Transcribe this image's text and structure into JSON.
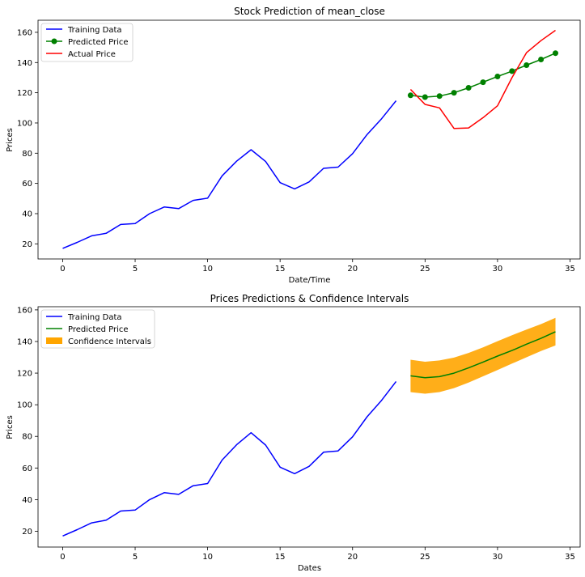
{
  "chart_data": [
    {
      "type": "line",
      "title": "Stock Prediction of mean_close",
      "xlabel": "Date/Time",
      "ylabel": "Prices",
      "xlim": [
        -1.7,
        35.7
      ],
      "ylim": [
        10,
        168
      ],
      "xticks": [
        0,
        5,
        10,
        15,
        20,
        25,
        30,
        35
      ],
      "yticks": [
        20,
        40,
        60,
        80,
        100,
        120,
        140,
        160
      ],
      "grid": false,
      "legend_position": "top-left",
      "series": [
        {
          "name": "Training Data",
          "color": "#0000ff",
          "marker": "none",
          "x": [
            0,
            1,
            2,
            3,
            4,
            5,
            6,
            7,
            8,
            9,
            10,
            11,
            12,
            13,
            14,
            15,
            16,
            17,
            18,
            19,
            20,
            21,
            22,
            23
          ],
          "y": [
            17,
            21,
            25.3,
            27,
            32.8,
            33.4,
            40,
            44.4,
            43.3,
            48.8,
            50.2,
            65,
            74.7,
            82.3,
            74.5,
            60.5,
            56.4,
            61,
            70,
            70.8,
            79.7,
            92.4,
            102.8,
            114.7
          ]
        },
        {
          "name": "Predicted Price",
          "color": "#008000",
          "marker": "circle",
          "x": [
            24,
            25,
            26,
            27,
            28,
            29,
            30,
            31,
            32,
            33,
            34
          ],
          "y": [
            118.3,
            117.1,
            117.8,
            120,
            123.3,
            127,
            130.8,
            134.3,
            138.3,
            142,
            146.2
          ]
        },
        {
          "name": "Actual Price",
          "color": "#ff0000",
          "marker": "none",
          "x": [
            24,
            25,
            26,
            27,
            28,
            29,
            30,
            31,
            32,
            33,
            34
          ],
          "y": [
            122.2,
            112.3,
            110,
            96.4,
            96.7,
            103.5,
            111.4,
            130,
            146.5,
            154.5,
            161.3
          ]
        }
      ]
    },
    {
      "type": "line",
      "title": "Prices Predictions & Confidence Intervals",
      "xlabel": "Dates",
      "ylabel": "Prices",
      "xlim": [
        -1.7,
        35.7
      ],
      "ylim": [
        10,
        162
      ],
      "xticks": [
        0,
        5,
        10,
        15,
        20,
        25,
        30,
        35
      ],
      "yticks": [
        20,
        40,
        60,
        80,
        100,
        120,
        140,
        160
      ],
      "grid": false,
      "legend_position": "top-left",
      "series": [
        {
          "name": "Training Data",
          "color": "#0000ff",
          "marker": "none",
          "x": [
            0,
            1,
            2,
            3,
            4,
            5,
            6,
            7,
            8,
            9,
            10,
            11,
            12,
            13,
            14,
            15,
            16,
            17,
            18,
            19,
            20,
            21,
            22,
            23
          ],
          "y": [
            17,
            21,
            25.3,
            27,
            32.8,
            33.4,
            40,
            44.4,
            43.3,
            48.8,
            50.2,
            65,
            74.7,
            82.3,
            74.5,
            60.5,
            56.4,
            61,
            70,
            70.8,
            79.7,
            92.4,
            102.8,
            114.7
          ]
        },
        {
          "name": "Predicted Price",
          "color": "#008000",
          "marker": "none",
          "x": [
            24,
            25,
            26,
            27,
            28,
            29,
            30,
            31,
            32,
            33,
            34
          ],
          "y": [
            118.3,
            117.1,
            117.8,
            120,
            123.3,
            127,
            130.8,
            134.3,
            138.3,
            142,
            146.2
          ]
        }
      ],
      "bands": [
        {
          "name": "Confidence Intervals",
          "color": "#ffa500",
          "x": [
            24,
            25,
            26,
            27,
            28,
            29,
            30,
            31,
            32,
            33,
            34
          ],
          "lower": [
            108,
            107,
            108,
            110.5,
            114,
            118,
            122,
            126,
            130,
            134,
            137.5
          ],
          "upper": [
            128.5,
            127.2,
            128,
            129.8,
            132.8,
            136.3,
            140.2,
            144,
            147.5,
            151,
            155
          ]
        }
      ]
    }
  ]
}
